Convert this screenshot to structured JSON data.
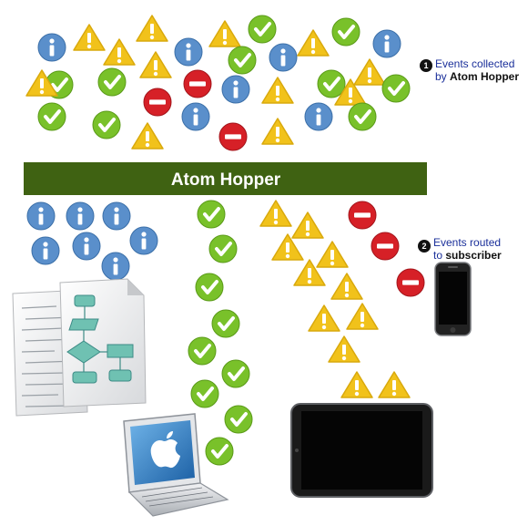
{
  "banner": {
    "label": "Atom Hopper",
    "color": "#3f6212"
  },
  "callouts": [
    {
      "number": "1",
      "line1": "Events collected",
      "line2_prefix": "by ",
      "line2_strong": "Atom Hopper"
    },
    {
      "number": "2",
      "line1": "Events routed",
      "line2_prefix": "to ",
      "line2_strong": "subscriber"
    }
  ],
  "event_icons": {
    "info": {
      "color": "#5a8fcb",
      "glyph": "i"
    },
    "check": {
      "color": "#79c12a",
      "glyph": "check-mark"
    },
    "warning": {
      "color": "#f1c21b",
      "glyph": "!"
    },
    "blocked": {
      "color": "#d62027",
      "glyph": "minus"
    }
  },
  "subscribers": [
    "documents-icon",
    "laptop-icon",
    "tablet-icon",
    "phone-icon"
  ]
}
